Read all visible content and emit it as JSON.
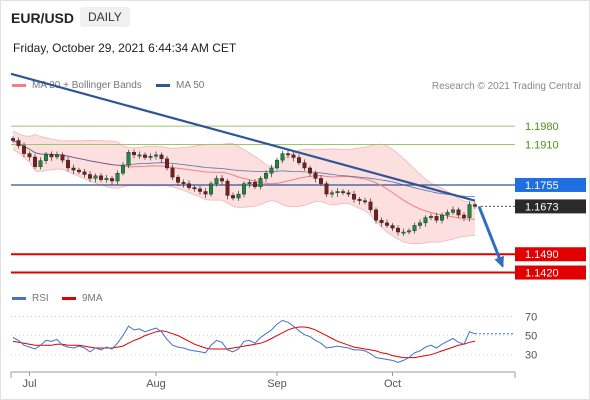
{
  "header": {
    "pair": "EUR/USD",
    "period": "DAILY",
    "datetime": "Friday, October 29, 2021 6:44:34 AM CET"
  },
  "legend": {
    "ma20": {
      "label": "MA 20 + Bollinger Bands",
      "color": "#f08080"
    },
    "ma50": {
      "label": "MA 50",
      "color": "#2f5597"
    },
    "rsi": {
      "label": "RSI",
      "color": "#4472c4"
    },
    "ma9": {
      "label": "9MA",
      "color": "#e00000"
    },
    "credit": "Research © 2021 Trading Central"
  },
  "chart_data": [
    {
      "type": "line",
      "ylim": [
        1.138,
        1.208
      ],
      "levels": [
        {
          "value": 1.198,
          "label": "1.1980",
          "kind": "resistance"
        },
        {
          "value": 1.191,
          "label": "1.1910",
          "kind": "resistance"
        },
        {
          "value": 1.1755,
          "label": "1.1755",
          "kind": "pivot"
        },
        {
          "value": 1.1673,
          "label": "1.1673",
          "kind": "last"
        },
        {
          "value": 1.149,
          "label": "1.1490",
          "kind": "support"
        },
        {
          "value": 1.142,
          "label": "1.1420",
          "kind": "support"
        }
      ],
      "x_ticks": [
        {
          "label": "Jul",
          "index": 3
        },
        {
          "label": "Aug",
          "index": 26
        },
        {
          "label": "Sep",
          "index": 48
        },
        {
          "label": "Oct",
          "index": 69
        }
      ],
      "closes": [
        1.1925,
        1.1905,
        1.1875,
        1.1862,
        1.1825,
        1.1848,
        1.1872,
        1.1862,
        1.187,
        1.185,
        1.182,
        1.1812,
        1.1805,
        1.1795,
        1.178,
        1.179,
        1.1775,
        1.178,
        1.177,
        1.18,
        1.183,
        1.188,
        1.187,
        1.187,
        1.186,
        1.1865,
        1.187,
        1.1855,
        1.182,
        1.1785,
        1.1765,
        1.176,
        1.1745,
        1.174,
        1.173,
        1.172,
        1.176,
        1.178,
        1.177,
        1.1715,
        1.1705,
        1.172,
        1.176,
        1.1765,
        1.1748,
        1.178,
        1.18,
        1.182,
        1.185,
        1.1875,
        1.187,
        1.186,
        1.184,
        1.182,
        1.18,
        1.178,
        1.176,
        1.172,
        1.1725,
        1.173,
        1.1725,
        1.172,
        1.17,
        1.1695,
        1.169,
        1.166,
        1.162,
        1.161,
        1.16,
        1.159,
        1.1575,
        1.1575,
        1.158,
        1.16,
        1.161,
        1.163,
        1.1635,
        1.162,
        1.164,
        1.165,
        1.166,
        1.164,
        1.163,
        1.168,
        1.1673
      ],
      "trendline": {
        "start": {
          "index": 0,
          "value": 1.218
        },
        "end": {
          "index": 84,
          "value": 1.1695
        }
      },
      "forecast_arrow": {
        "from_index": 84,
        "from_value": 1.1673,
        "to_index": 89,
        "to_value": 1.1445
      }
    },
    {
      "type": "line",
      "ylim": [
        15,
        80
      ],
      "y_ticks": [
        70,
        50,
        30
      ],
      "series": [
        {
          "name": "RSI",
          "values": [
            48,
            45,
            40,
            38,
            36,
            40,
            45,
            44,
            46,
            40,
            38,
            37,
            39,
            37,
            33,
            37,
            35,
            38,
            36,
            42,
            50,
            60,
            56,
            57,
            54,
            56,
            58,
            54,
            46,
            40,
            38,
            37,
            35,
            34,
            33,
            32,
            40,
            45,
            43,
            35,
            33,
            36,
            44,
            45,
            42,
            48,
            52,
            56,
            62,
            66,
            64,
            60,
            55,
            51,
            49,
            45,
            42,
            37,
            38,
            39,
            38,
            37,
            35,
            35,
            34,
            31,
            27,
            26,
            25,
            24,
            22,
            24,
            27,
            32,
            34,
            38,
            40,
            37,
            41,
            44,
            47,
            43,
            41,
            54,
            52
          ]
        },
        {
          "name": "9MA",
          "values": [
            44,
            43,
            42,
            41,
            40,
            40,
            40,
            40,
            41,
            41,
            40,
            40,
            40,
            39,
            38,
            37,
            37,
            37,
            37,
            38,
            39,
            42,
            45,
            47,
            50,
            52,
            54,
            55,
            54,
            52,
            50,
            47,
            44,
            41,
            39,
            37,
            36,
            36,
            36,
            36,
            37,
            38,
            39,
            40,
            41,
            42,
            44,
            47,
            50,
            53,
            56,
            58,
            59,
            59,
            58,
            56,
            53,
            50,
            47,
            44,
            42,
            40,
            38,
            37,
            36,
            35,
            34,
            32,
            31,
            29,
            28,
            27,
            27,
            27,
            28,
            29,
            30,
            32,
            34,
            36,
            38,
            40,
            41,
            43,
            44
          ]
        }
      ]
    }
  ]
}
